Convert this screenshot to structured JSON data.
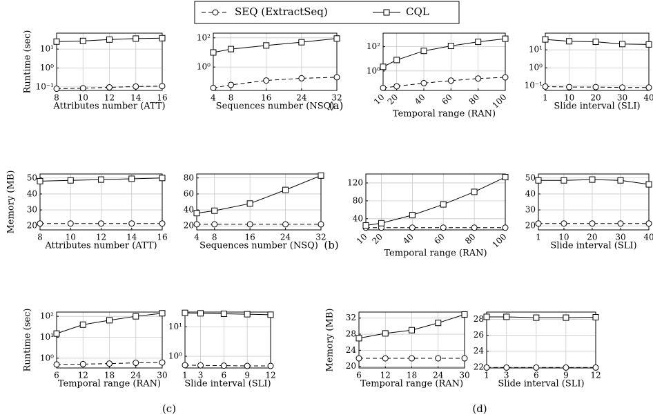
{
  "chart_data": [
    {
      "type": "line",
      "ylabel": "Runtime (sec)",
      "xlabel": "Attributes number (ATT)",
      "log_y": true,
      "grid": true,
      "x": [
        8,
        10,
        12,
        14,
        16
      ],
      "xlim": [
        8,
        16
      ],
      "xticks": [
        8,
        10,
        12,
        14,
        16
      ],
      "ylim": [
        0.065,
        70
      ],
      "yticks": [
        {
          "value": 0.1,
          "label": "10⁻¹"
        },
        {
          "value": 1,
          "label": "10⁰"
        },
        {
          "value": 10,
          "label": "10¹"
        }
      ],
      "series": [
        {
          "name": "SEQ (ExtractSeq)",
          "color": "#000000",
          "marker": "circle",
          "linestyle": "dashed",
          "values": [
            0.08,
            0.085,
            0.095,
            0.105,
            0.11
          ]
        },
        {
          "name": "CQL",
          "color": "#000000",
          "marker": "square",
          "linestyle": "solid",
          "values": [
            25,
            27,
            32,
            36,
            38
          ]
        }
      ]
    },
    {
      "type": "line",
      "xlabel": "Sequences number (NSQ)",
      "log_y": true,
      "grid": true,
      "x": [
        4,
        8,
        16,
        24,
        32
      ],
      "xlim": [
        4,
        32
      ],
      "xticks": [
        4,
        8,
        16,
        24,
        32
      ],
      "ylim": [
        0.025,
        210
      ],
      "yticks": [
        {
          "value": 1,
          "label": "10⁰"
        },
        {
          "value": 100,
          "label": "10²"
        }
      ],
      "series": [
        {
          "name": "SEQ (ExtractSeq)",
          "color": "#000000",
          "marker": "circle",
          "linestyle": "dashed",
          "values": [
            0.037,
            0.06,
            0.12,
            0.17,
            0.2
          ]
        },
        {
          "name": "CQL",
          "color": "#000000",
          "marker": "square",
          "linestyle": "solid",
          "values": [
            10,
            17,
            30,
            50,
            90
          ]
        }
      ]
    },
    {
      "type": "line",
      "xlabel": "Temporal range (RAN)",
      "log_y": true,
      "grid": true,
      "xtick_rotation": 45,
      "x": [
        10,
        20,
        40,
        60,
        80,
        100
      ],
      "xlim": [
        10,
        100
      ],
      "xticks": [
        10,
        20,
        40,
        60,
        80,
        100
      ],
      "ylim": [
        0.025,
        1300
      ],
      "yticks": [
        {
          "value": 1,
          "label": "10⁰"
        },
        {
          "value": 100,
          "label": "10²"
        }
      ],
      "series": [
        {
          "name": "SEQ (ExtractSeq)",
          "color": "#000000",
          "marker": "circle",
          "linestyle": "dashed",
          "values": [
            0.04,
            0.055,
            0.1,
            0.16,
            0.24,
            0.3
          ]
        },
        {
          "name": "CQL",
          "color": "#000000",
          "marker": "square",
          "linestyle": "solid",
          "values": [
            2.2,
            8,
            45,
            115,
            250,
            450
          ]
        }
      ]
    },
    {
      "type": "line",
      "xlabel": "Slide interval (SLI)",
      "log_y": true,
      "grid": true,
      "x": [
        1,
        10,
        20,
        30,
        40
      ],
      "xlim": [
        1,
        40
      ],
      "xticks": [
        1,
        10,
        20,
        30,
        40
      ],
      "ylim": [
        0.055,
        85
      ],
      "yticks": [
        {
          "value": 0.1,
          "label": "10⁻¹"
        },
        {
          "value": 1,
          "label": "10⁰"
        },
        {
          "value": 10,
          "label": "10¹"
        }
      ],
      "series": [
        {
          "name": "SEQ (ExtractSeq)",
          "color": "#000000",
          "marker": "circle",
          "linestyle": "dashed",
          "values": [
            0.09,
            0.085,
            0.085,
            0.08,
            0.08
          ]
        },
        {
          "name": "CQL",
          "color": "#000000",
          "marker": "square",
          "linestyle": "solid",
          "values": [
            38,
            30,
            28,
            21,
            20
          ]
        }
      ]
    },
    {
      "type": "line",
      "ylabel": "Memory (MB)",
      "xlabel": "Attributes number (ATT)",
      "grid": true,
      "x": [
        8,
        10,
        12,
        14,
        16
      ],
      "xlim": [
        8,
        16
      ],
      "xticks": [
        8,
        10,
        12,
        14,
        16
      ],
      "ylim": [
        17.5,
        52.5
      ],
      "yticks": [
        20,
        30,
        40,
        50
      ],
      "series": [
        {
          "name": "SEQ (ExtractSeq)",
          "color": "#000000",
          "marker": "circle",
          "linestyle": "dashed",
          "values": [
            21.5,
            21.5,
            21.5,
            21.5,
            21.5
          ]
        },
        {
          "name": "CQL",
          "color": "#000000",
          "marker": "square",
          "linestyle": "solid",
          "values": [
            48,
            48.5,
            49,
            49.5,
            50
          ]
        }
      ]
    },
    {
      "type": "line",
      "xlabel": "Sequences number (NSQ)",
      "grid": true,
      "x": [
        4,
        8,
        16,
        24,
        32
      ],
      "xlim": [
        4,
        32
      ],
      "xticks": [
        4,
        8,
        16,
        24,
        32
      ],
      "ylim": [
        15,
        85
      ],
      "yticks": [
        20,
        40,
        60,
        80
      ],
      "series": [
        {
          "name": "SEQ (ExtractSeq)",
          "color": "#000000",
          "marker": "circle",
          "linestyle": "dashed",
          "values": [
            22,
            22,
            22,
            22,
            22
          ]
        },
        {
          "name": "CQL",
          "color": "#000000",
          "marker": "square",
          "linestyle": "solid",
          "values": [
            36,
            39,
            48,
            65,
            83
          ]
        }
      ]
    },
    {
      "type": "line",
      "xlabel": "Temporal range (RAN)",
      "grid": true,
      "xtick_rotation": 45,
      "x": [
        10,
        20,
        40,
        60,
        80,
        100
      ],
      "xlim": [
        10,
        100
      ],
      "xticks": [
        10,
        20,
        40,
        60,
        80,
        100
      ],
      "ylim": [
        15,
        140
      ],
      "yticks": [
        40,
        80,
        120
      ],
      "series": [
        {
          "name": "SEQ (ExtractSeq)",
          "color": "#000000",
          "marker": "circle",
          "linestyle": "dashed",
          "values": [
            20,
            20,
            20,
            20,
            20,
            20
          ]
        },
        {
          "name": "CQL",
          "color": "#000000",
          "marker": "square",
          "linestyle": "solid",
          "values": [
            25,
            30,
            48,
            72,
            100,
            133
          ]
        }
      ]
    },
    {
      "type": "line",
      "xlabel": "Slide interval (SLI)",
      "grid": true,
      "x": [
        1,
        10,
        20,
        30,
        40
      ],
      "xlim": [
        1,
        40
      ],
      "xticks": [
        1,
        10,
        20,
        30,
        40
      ],
      "ylim": [
        17.5,
        52.5
      ],
      "yticks": [
        20,
        30,
        40,
        50
      ],
      "series": [
        {
          "name": "SEQ (ExtractSeq)",
          "color": "#000000",
          "marker": "circle",
          "linestyle": "dashed",
          "values": [
            21.5,
            21.5,
            21.5,
            21.5,
            21.5
          ]
        },
        {
          "name": "CQL",
          "color": "#000000",
          "marker": "square",
          "linestyle": "solid",
          "values": [
            48.5,
            48.5,
            49,
            48.5,
            46
          ]
        }
      ]
    },
    {
      "type": "line",
      "ylabel": "Runtime (sec)",
      "xlabel": "Temporal range (RAN)",
      "log_y": true,
      "grid": true,
      "x": [
        6,
        12,
        18,
        24,
        30
      ],
      "xlim": [
        6,
        30
      ],
      "xticks": [
        6,
        12,
        18,
        24,
        30
      ],
      "ylim": [
        0.34,
        160
      ],
      "yticks": [
        {
          "value": 1,
          "label": "10⁰"
        },
        {
          "value": 10,
          "label": "10¹"
        },
        {
          "value": 100,
          "label": "10²"
        }
      ],
      "series": [
        {
          "name": "SEQ (ExtractSeq)",
          "color": "#000000",
          "marker": "circle",
          "linestyle": "dashed",
          "values": [
            0.5,
            0.52,
            0.55,
            0.6,
            0.62
          ]
        },
        {
          "name": "CQL",
          "color": "#000000",
          "marker": "square",
          "linestyle": "solid",
          "values": [
            15,
            40,
            65,
            100,
            140
          ]
        }
      ]
    },
    {
      "type": "line",
      "xlabel": "Slide interval (SLI)",
      "log_y": true,
      "grid": true,
      "x": [
        1,
        3,
        6,
        9,
        12
      ],
      "xlim": [
        1,
        12
      ],
      "xticks": [
        1,
        3,
        6,
        9,
        12
      ],
      "ylim": [
        0.4,
        32
      ],
      "yticks": [
        {
          "value": 1,
          "label": "10⁰"
        },
        {
          "value": 10,
          "label": "10¹"
        }
      ],
      "series": [
        {
          "name": "SEQ (ExtractSeq)",
          "color": "#000000",
          "marker": "circle",
          "linestyle": "dashed",
          "values": [
            0.5,
            0.49,
            0.48,
            0.47,
            0.47
          ]
        },
        {
          "name": "CQL",
          "color": "#000000",
          "marker": "square",
          "linestyle": "solid",
          "values": [
            30,
            29,
            28,
            27,
            26
          ]
        }
      ]
    },
    {
      "type": "line",
      "ylabel": "Memory (MB)",
      "xlabel": "Temporal range (RAN)",
      "grid": true,
      "x": [
        6,
        12,
        18,
        24,
        30
      ],
      "xlim": [
        6,
        30
      ],
      "xticks": [
        6,
        12,
        18,
        24,
        30
      ],
      "ylim": [
        19.6,
        33.5
      ],
      "yticks": [
        20,
        24,
        28,
        32
      ],
      "series": [
        {
          "name": "SEQ (ExtractSeq)",
          "color": "#000000",
          "marker": "circle",
          "linestyle": "dashed",
          "values": [
            22,
            22,
            22,
            22,
            22
          ]
        },
        {
          "name": "CQL",
          "color": "#000000",
          "marker": "square",
          "linestyle": "solid",
          "values": [
            27,
            28.2,
            29,
            30.8,
            32.9
          ]
        }
      ]
    },
    {
      "type": "line",
      "xlabel": "Slide interval (SLI)",
      "grid": true,
      "x": [
        1,
        3,
        6,
        9,
        12
      ],
      "xlim": [
        1,
        12
      ],
      "xticks": [
        1,
        3,
        6,
        9,
        12
      ],
      "ylim": [
        21.9,
        28.9
      ],
      "yticks": [
        22,
        24,
        26,
        28
      ],
      "series": [
        {
          "name": "SEQ (ExtractSeq)",
          "color": "#000000",
          "marker": "circle",
          "linestyle": "dashed",
          "values": [
            21.95,
            21.95,
            21.95,
            21.95,
            21.95
          ]
        },
        {
          "name": "CQL",
          "color": "#000000",
          "marker": "square",
          "linestyle": "solid",
          "values": [
            28.3,
            28.3,
            28.2,
            28.2,
            28.25
          ]
        }
      ]
    }
  ],
  "panel_labels": [
    "(a)",
    "(b)",
    "(c)",
    "(d)"
  ]
}
